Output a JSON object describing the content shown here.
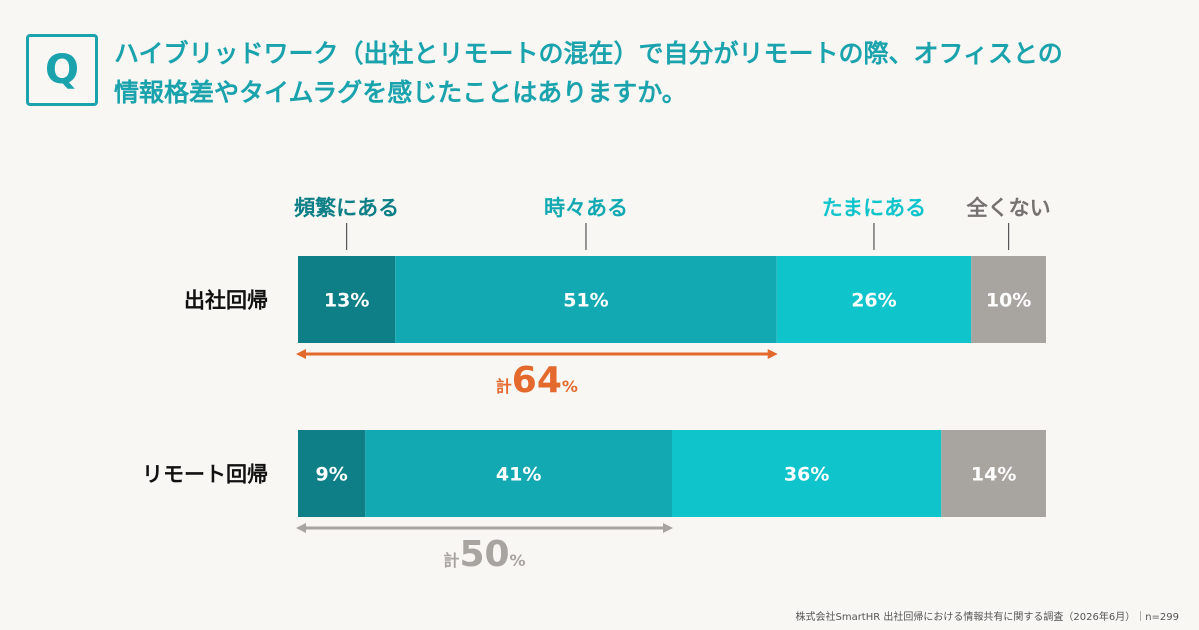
{
  "question": {
    "badge": "Q",
    "line1": "ハイブリッドワーク（出社とリモートの混在）で自分がリモートの際、オフィスとの",
    "line2": "情報格差やタイムラグを感じたことはありますか。"
  },
  "colors": {
    "accent": "#1aa3ad",
    "frequent": "#0e7f86",
    "sometimes": "#13a9b3",
    "occasional": "#10c4cc",
    "never": "#a8a49f",
    "highlight": "#e4692d",
    "muted": "#a8a49f"
  },
  "chart_data": {
    "type": "bar",
    "stacked": true,
    "orientation": "horizontal",
    "unit": "%",
    "categories": [
      "出社回帰",
      "リモート回帰"
    ],
    "series": [
      {
        "name": "頻繁にある",
        "values": [
          13,
          9
        ]
      },
      {
        "name": "時々ある",
        "values": [
          51,
          41
        ]
      },
      {
        "name": "たまにある",
        "values": [
          26,
          36
        ]
      },
      {
        "name": "全くない",
        "values": [
          10,
          14
        ]
      }
    ],
    "totals": [
      {
        "prefix": "計",
        "value": 64,
        "unit": "%",
        "span_series": 2
      },
      {
        "prefix": "計",
        "value": 50,
        "unit": "%",
        "span_series": 2
      }
    ]
  },
  "footnote": "株式会社SmartHR 出社回帰における情報共有に関する調査（2026年6月）｜n=299"
}
